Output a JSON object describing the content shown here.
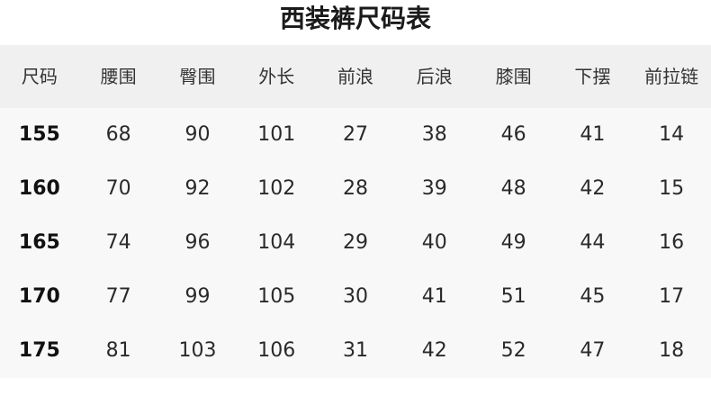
{
  "title": "西装裤尺码表",
  "colors": {
    "header_bg": "#f0f0f0",
    "body_bg": "#f8f8f8"
  },
  "table": {
    "headers": [
      "尺码",
      "腰围",
      "臀围",
      "外长",
      "前浪",
      "后浪",
      "膝围",
      "下摆",
      "前拉链"
    ],
    "rows": [
      [
        "155",
        "68",
        "90",
        "101",
        "27",
        "38",
        "46",
        "41",
        "14"
      ],
      [
        "160",
        "70",
        "92",
        "102",
        "28",
        "39",
        "48",
        "42",
        "15"
      ],
      [
        "165",
        "74",
        "96",
        "104",
        "29",
        "40",
        "49",
        "44",
        "16"
      ],
      [
        "170",
        "77",
        "99",
        "105",
        "30",
        "41",
        "51",
        "45",
        "17"
      ],
      [
        "175",
        "81",
        "103",
        "106",
        "31",
        "42",
        "52",
        "47",
        "18"
      ]
    ]
  }
}
